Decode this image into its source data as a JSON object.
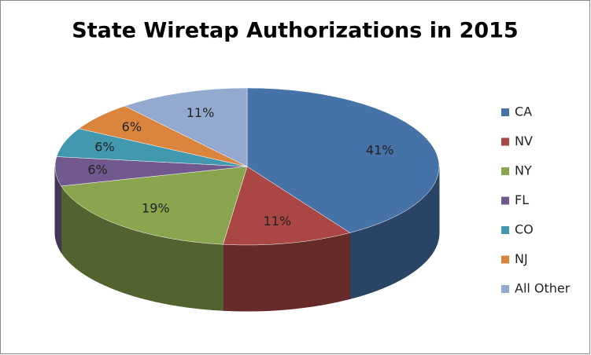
{
  "chart_data": {
    "type": "pie3d",
    "title": "State Wiretap Authorizations in 2015",
    "categories": [
      "CA",
      "NV",
      "NY",
      "FL",
      "CO",
      "NJ",
      "All Other"
    ],
    "values": [
      41,
      11,
      19,
      6,
      6,
      6,
      11
    ],
    "value_labels": [
      "41%",
      "11%",
      "19%",
      "6%",
      "6%",
      "6%",
      "11%"
    ],
    "colors": [
      "#4572a7",
      "#aa4643",
      "#89a54e",
      "#71588f",
      "#4198af",
      "#db843d",
      "#93a9cf"
    ],
    "legend": "right"
  }
}
